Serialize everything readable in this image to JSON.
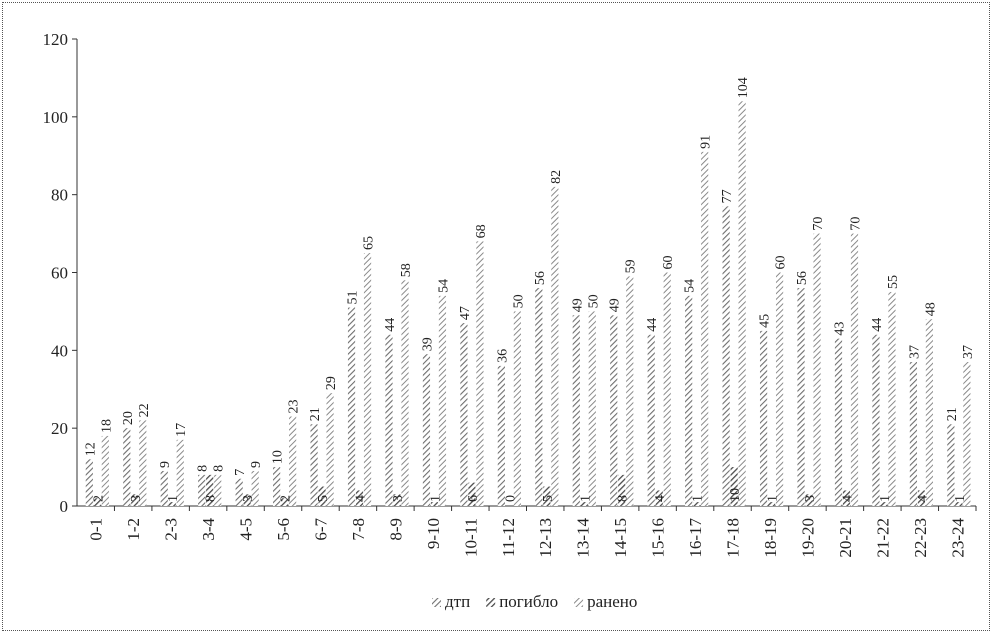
{
  "chart_data": {
    "type": "bar",
    "title": "",
    "xlabel": "",
    "ylabel": "",
    "ylim": [
      0,
      120
    ],
    "yticks": [
      0,
      20,
      40,
      60,
      80,
      100,
      120
    ],
    "grid": false,
    "legend_position": "bottom",
    "categories": [
      "0-1",
      "1-2",
      "2-3",
      "3-4",
      "4-5",
      "5-6",
      "6-7",
      "7-8",
      "8-9",
      "9-10",
      "10-11",
      "11-12",
      "12-13",
      "13-14",
      "14-15",
      "15-16",
      "16-17",
      "17-18",
      "18-19",
      "19-20",
      "20-21",
      "21-22",
      "22-23",
      "23-24"
    ],
    "series": [
      {
        "name": "дтп",
        "values": [
          12,
          20,
          9,
          8,
          7,
          10,
          21,
          51,
          44,
          39,
          47,
          36,
          56,
          49,
          49,
          44,
          54,
          77,
          45,
          56,
          43,
          44,
          37,
          21
        ]
      },
      {
        "name": "погибло",
        "values": [
          2,
          3,
          1,
          8,
          3,
          2,
          5,
          4,
          3,
          1,
          6,
          0,
          5,
          1,
          8,
          4,
          1,
          10,
          1,
          3,
          4,
          1,
          4,
          1
        ]
      },
      {
        "name": "ранено",
        "values": [
          18,
          22,
          17,
          8,
          9,
          23,
          29,
          65,
          58,
          54,
          68,
          50,
          82,
          50,
          59,
          60,
          91,
          104,
          60,
          70,
          70,
          55,
          48,
          37
        ]
      }
    ],
    "colors": [
      "#6e6e6e",
      "#4a4a4a",
      "#8a8a8a"
    ]
  }
}
